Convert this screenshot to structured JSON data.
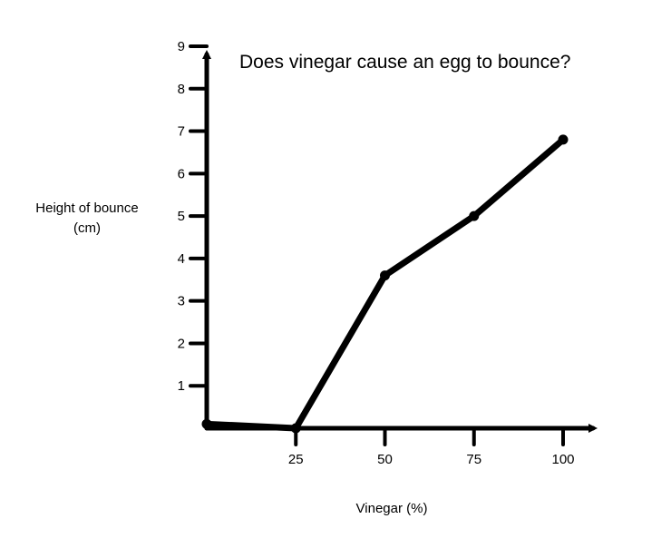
{
  "chart_data": {
    "type": "line",
    "title": "Does vinegar cause an egg to bounce?",
    "xlabel": "Vinegar (%)",
    "ylabel_lines": [
      "Height of bounce",
      "(cm)"
    ],
    "x_ticks": [
      "25",
      "50",
      "75",
      "100"
    ],
    "y_ticks": [
      "1",
      "2",
      "3",
      "4",
      "5",
      "6",
      "7",
      "8",
      "9"
    ],
    "xlim": [
      0,
      100
    ],
    "ylim": [
      0,
      9
    ],
    "grid": false,
    "legend": "none",
    "series": [
      {
        "x": [
          0,
          25,
          50,
          75,
          100
        ],
        "y": [
          0.1,
          0,
          3.6,
          5.0,
          6.8
        ],
        "color": "#000000"
      }
    ]
  }
}
